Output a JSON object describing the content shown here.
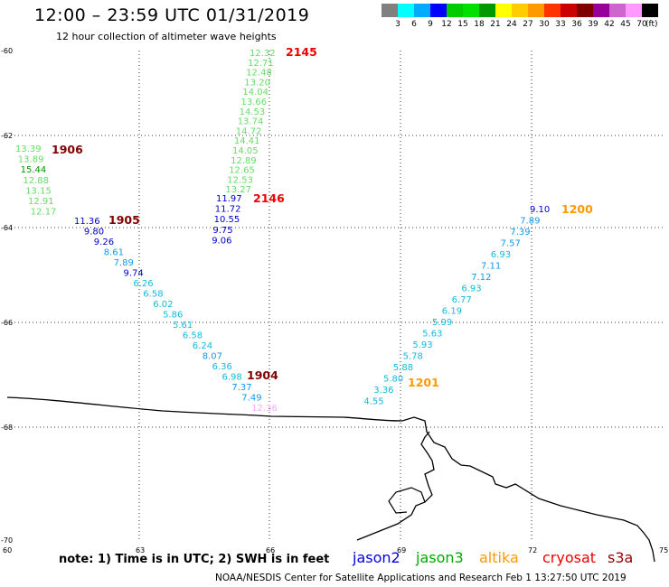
{
  "title": "12:00 – 23:59 UTC 01/31/2019",
  "subtitle": "12 hour collection of altimeter wave heights",
  "note": "note:  1) Time is in UTC;  2) SWH is in feet",
  "credit": "NOAA/NESDIS Center for Satellite Applications and Research    Feb  1 13:27:50 UTC 2019",
  "legend": {
    "unit": "(ft)",
    "bins": [
      {
        "label": "3",
        "color": "#808080"
      },
      {
        "label": "6",
        "color": "#00ffff"
      },
      {
        "label": "9",
        "color": "#00aaff"
      },
      {
        "label": "12",
        "color": "#0000ff"
      },
      {
        "label": "15",
        "color": "#00cc00"
      },
      {
        "label": "18",
        "color": "#00e000"
      },
      {
        "label": "21",
        "color": "#009900"
      },
      {
        "label": "24",
        "color": "#ffff00"
      },
      {
        "label": "27",
        "color": "#ffcc00"
      },
      {
        "label": "30",
        "color": "#ff9900"
      },
      {
        "label": "33",
        "color": "#ff3300"
      },
      {
        "label": "36",
        "color": "#cc0000"
      },
      {
        "label": "39",
        "color": "#800000"
      },
      {
        "label": "42",
        "color": "#990099"
      },
      {
        "label": "45",
        "color": "#cc66cc"
      },
      {
        "label": "70",
        "color": "#ff99ff"
      },
      {
        "label": "",
        "color": "#000000"
      }
    ]
  },
  "axes": {
    "lon_ticks": [
      "60",
      "63",
      "66",
      "69",
      "72",
      "75"
    ],
    "lat_ticks": [
      "-60",
      "-62",
      "-64",
      "-66",
      "-68",
      "-70"
    ]
  },
  "satellites": [
    {
      "name": "jason2",
      "color": "#0000dd"
    },
    {
      "name": "jason3",
      "color": "#00aa00"
    },
    {
      "name": "altika",
      "color": "#ff9900"
    },
    {
      "name": "cryosat",
      "color": "#ee0000"
    },
    {
      "name": "s3a",
      "color": "#990000"
    }
  ],
  "time_labels": [
    {
      "text": "2145",
      "color": "#ee0000"
    },
    {
      "text": "1906",
      "color": "#800000"
    },
    {
      "text": "2146",
      "color": "#ee0000"
    },
    {
      "text": "1905",
      "color": "#800000"
    },
    {
      "text": "1200",
      "color": "#ff9900"
    },
    {
      "text": "1904",
      "color": "#800000"
    },
    {
      "text": "1201",
      "color": "#ff9900"
    }
  ],
  "tracks": [
    {
      "name": "cryosat-2145",
      "values": [
        {
          "v": "12.32",
          "c": "#66dd66"
        },
        {
          "v": "12.71",
          "c": "#66dd66"
        },
        {
          "v": "12.48",
          "c": "#66dd66"
        },
        {
          "v": "13.20",
          "c": "#66dd66"
        },
        {
          "v": "14.04",
          "c": "#66dd66"
        },
        {
          "v": "13.66",
          "c": "#66dd66"
        },
        {
          "v": "14.53",
          "c": "#66dd66"
        },
        {
          "v": "13.74",
          "c": "#66dd66"
        },
        {
          "v": "14.72",
          "c": "#66dd66"
        },
        {
          "v": "14.41",
          "c": "#66dd66"
        },
        {
          "v": "14.05",
          "c": "#66dd66"
        },
        {
          "v": "12.89",
          "c": "#66dd66"
        },
        {
          "v": "12.65",
          "c": "#66dd66"
        },
        {
          "v": "12.53",
          "c": "#66dd66"
        },
        {
          "v": "13.27",
          "c": "#66dd66"
        }
      ]
    },
    {
      "name": "cryosat-2146",
      "values": [
        {
          "v": "11.97",
          "c": "#0000cc"
        },
        {
          "v": "11.72",
          "c": "#0000cc"
        },
        {
          "v": "10.55",
          "c": "#0000cc"
        },
        {
          "v": "9.75",
          "c": "#0000cc"
        },
        {
          "v": "9.06",
          "c": "#0000cc"
        }
      ]
    },
    {
      "name": "s3a-1906",
      "values": [
        {
          "v": "13.39",
          "c": "#66dd66"
        },
        {
          "v": "13.89",
          "c": "#66dd66"
        },
        {
          "v": "15.44",
          "c": "#009900"
        },
        {
          "v": "12.88",
          "c": "#66dd66"
        },
        {
          "v": "13.15",
          "c": "#66dd66"
        },
        {
          "v": "12.91",
          "c": "#66dd66"
        },
        {
          "v": "12.17",
          "c": "#66dd66"
        }
      ]
    },
    {
      "name": "s3a-1905",
      "values": [
        {
          "v": "11.36",
          "c": "#0000cc"
        },
        {
          "v": "9.80",
          "c": "#0000cc"
        },
        {
          "v": "9.26",
          "c": "#0000cc"
        },
        {
          "v": "8.61",
          "c": "#1199ee"
        },
        {
          "v": "7.89",
          "c": "#1199ee"
        },
        {
          "v": "9.74",
          "c": "#0000cc"
        },
        {
          "v": "6.26",
          "c": "#11bbdd"
        },
        {
          "v": "6.58",
          "c": "#11bbdd"
        },
        {
          "v": "6.02",
          "c": "#11bbdd"
        },
        {
          "v": "5.86",
          "c": "#11bbdd"
        },
        {
          "v": "5.61",
          "c": "#11bbdd"
        },
        {
          "v": "6.58",
          "c": "#11bbdd"
        },
        {
          "v": "6.24",
          "c": "#11bbdd"
        },
        {
          "v": "8.07",
          "c": "#1199ee"
        },
        {
          "v": "6.36",
          "c": "#11bbdd"
        },
        {
          "v": "6.98",
          "c": "#11bbdd"
        },
        {
          "v": "7.37",
          "c": "#1199ee"
        },
        {
          "v": "7.49",
          "c": "#1199ee"
        },
        {
          "v": "12.36",
          "c": "#ffaaff"
        }
      ]
    },
    {
      "name": "altika-1200",
      "values": [
        {
          "v": "9.10",
          "c": "#0000cc"
        },
        {
          "v": "7.89",
          "c": "#1199ee"
        },
        {
          "v": "7.39",
          "c": "#1199ee"
        },
        {
          "v": "7.57",
          "c": "#1199ee"
        },
        {
          "v": "6.93",
          "c": "#11bbdd"
        },
        {
          "v": "7.11",
          "c": "#1199ee"
        },
        {
          "v": "7.12",
          "c": "#1199ee"
        },
        {
          "v": "6.93",
          "c": "#11bbdd"
        },
        {
          "v": "6.77",
          "c": "#11bbdd"
        },
        {
          "v": "6.19",
          "c": "#11bbdd"
        },
        {
          "v": "5.99",
          "c": "#11bbdd"
        },
        {
          "v": "5.63",
          "c": "#11bbdd"
        },
        {
          "v": "5.93",
          "c": "#11bbdd"
        },
        {
          "v": "5.78",
          "c": "#11bbdd"
        },
        {
          "v": "5.88",
          "c": "#11bbdd"
        },
        {
          "v": "5.80",
          "c": "#11bbdd"
        },
        {
          "v": "3.36",
          "c": "#11bbdd"
        },
        {
          "v": "4.55",
          "c": "#11bbdd"
        }
      ]
    }
  ]
}
